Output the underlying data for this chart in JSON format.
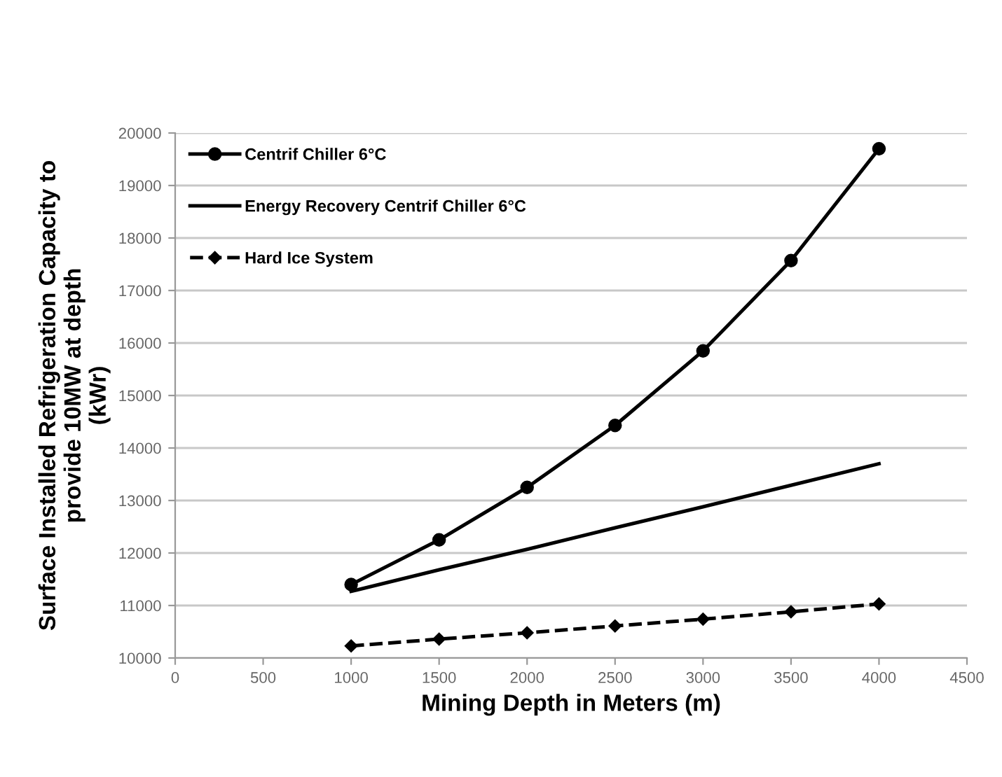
{
  "chart_data": {
    "type": "line",
    "xlabel": "Mining Depth in Meters (m)",
    "ylabel": "Surface Installed Refrigeration Capacity to\nprovide 10MW at depth\n(kWr)",
    "x": [
      1000,
      1500,
      2000,
      2500,
      3000,
      3500,
      4000
    ],
    "series": [
      {
        "name": "Centrif Chiller 6°C",
        "color": "#000000",
        "marker": "circle",
        "line_style": "solid",
        "values": [
          11400,
          12250,
          13250,
          14430,
          15850,
          17570,
          19700
        ]
      },
      {
        "name": "Energy Recovery Centrif Chiller 6°C",
        "color": "#000000",
        "marker": "none",
        "line_style": "solid",
        "values": [
          11270,
          11680,
          12070,
          12480,
          12880,
          13290,
          13700
        ]
      },
      {
        "name": "Hard Ice System",
        "color": "#000000",
        "marker": "diamond",
        "line_style": "dashed",
        "values": [
          10230,
          10360,
          10480,
          10610,
          10740,
          10880,
          11030
        ]
      }
    ],
    "xlim": [
      0,
      4500
    ],
    "xticks": [
      0,
      500,
      1000,
      1500,
      2000,
      2500,
      3000,
      3500,
      4000,
      4500
    ],
    "ylim": [
      10000,
      20000
    ],
    "yticks": [
      10000,
      11000,
      12000,
      13000,
      14000,
      15000,
      16000,
      17000,
      18000,
      19000,
      20000
    ],
    "grid": "y",
    "legend": "top left"
  }
}
